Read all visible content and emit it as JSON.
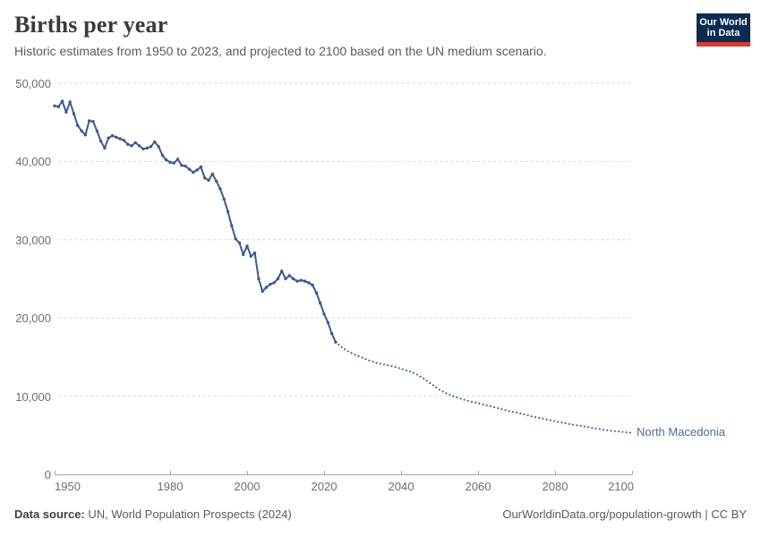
{
  "header": {
    "title": "Births per year",
    "subtitle": "Historic estimates from 1950 to 2023, and projected to 2100 based on the UN medium scenario.",
    "logo": {
      "line1": "Our World",
      "line2": "in Data"
    }
  },
  "theme": {
    "line_color": "#3d5a8f",
    "entity_color": "#4c6b9e",
    "grid_color": "#dadada",
    "axis_color": "#a6a6a6",
    "tick_text_color": "#6e6e6e",
    "title_color": "#3a3a3a",
    "subtitle_color": "#5b5b5b",
    "logo_bg": "#0a2b52",
    "logo_red": "#d73a32"
  },
  "chart_data": {
    "type": "line",
    "title": "Births per year",
    "entity": "North Macedonia",
    "xlim": [
      1950,
      2100
    ],
    "ylim": [
      0,
      50000
    ],
    "grid": true,
    "x_ticks": [
      1950,
      1980,
      2000,
      2020,
      2040,
      2060,
      2080,
      2100
    ],
    "y_ticks": [
      0,
      10000,
      20000,
      30000,
      40000,
      50000
    ],
    "y_tick_labels": [
      "0",
      "10,000",
      "20,000",
      "30,000",
      "40,000",
      "50,000"
    ],
    "series": [
      {
        "name": "historic (1950-2023)",
        "style": "solid",
        "points": [
          [
            1950,
            47100
          ],
          [
            1951,
            47000
          ],
          [
            1952,
            47700
          ],
          [
            1953,
            46300
          ],
          [
            1954,
            47600
          ],
          [
            1955,
            46100
          ],
          [
            1956,
            44600
          ],
          [
            1957,
            43900
          ],
          [
            1958,
            43400
          ],
          [
            1959,
            45200
          ],
          [
            1960,
            45100
          ],
          [
            1961,
            43900
          ],
          [
            1962,
            42600
          ],
          [
            1963,
            41700
          ],
          [
            1964,
            43000
          ],
          [
            1965,
            43300
          ],
          [
            1966,
            43100
          ],
          [
            1967,
            42900
          ],
          [
            1968,
            42700
          ],
          [
            1969,
            42200
          ],
          [
            1970,
            42000
          ],
          [
            1971,
            42400
          ],
          [
            1972,
            42000
          ],
          [
            1973,
            41600
          ],
          [
            1974,
            41700
          ],
          [
            1975,
            41900
          ],
          [
            1976,
            42500
          ],
          [
            1977,
            41900
          ],
          [
            1978,
            40800
          ],
          [
            1979,
            40200
          ],
          [
            1980,
            39900
          ],
          [
            1981,
            39800
          ],
          [
            1982,
            40300
          ],
          [
            1983,
            39500
          ],
          [
            1984,
            39400
          ],
          [
            1985,
            39000
          ],
          [
            1986,
            38600
          ],
          [
            1987,
            38900
          ],
          [
            1988,
            39300
          ],
          [
            1989,
            37900
          ],
          [
            1990,
            37600
          ],
          [
            1991,
            38400
          ],
          [
            1992,
            37500
          ],
          [
            1993,
            36500
          ],
          [
            1994,
            35200
          ],
          [
            1995,
            33600
          ],
          [
            1996,
            31800
          ],
          [
            1997,
            30100
          ],
          [
            1998,
            29600
          ],
          [
            1999,
            28100
          ],
          [
            2000,
            29200
          ],
          [
            2001,
            27900
          ],
          [
            2002,
            28300
          ],
          [
            2003,
            25000
          ],
          [
            2004,
            23400
          ],
          [
            2005,
            23900
          ],
          [
            2006,
            24300
          ],
          [
            2007,
            24500
          ],
          [
            2008,
            25000
          ],
          [
            2009,
            26000
          ],
          [
            2010,
            25000
          ],
          [
            2011,
            25400
          ],
          [
            2012,
            25000
          ],
          [
            2013,
            24700
          ],
          [
            2014,
            24800
          ],
          [
            2015,
            24700
          ],
          [
            2016,
            24500
          ],
          [
            2017,
            24200
          ],
          [
            2018,
            23200
          ],
          [
            2019,
            21900
          ],
          [
            2020,
            20500
          ],
          [
            2021,
            19400
          ],
          [
            2022,
            18000
          ],
          [
            2023,
            16900
          ]
        ]
      },
      {
        "name": "UN medium projection (2023-2100)",
        "style": "dotted",
        "points": [
          [
            2023,
            16900
          ],
          [
            2024,
            16500
          ],
          [
            2025,
            16100
          ],
          [
            2026,
            15800
          ],
          [
            2028,
            15300
          ],
          [
            2030,
            14900
          ],
          [
            2032,
            14500
          ],
          [
            2034,
            14200
          ],
          [
            2036,
            14000
          ],
          [
            2038,
            13800
          ],
          [
            2040,
            13500
          ],
          [
            2042,
            13200
          ],
          [
            2044,
            12800
          ],
          [
            2046,
            12200
          ],
          [
            2048,
            11500
          ],
          [
            2050,
            10800
          ],
          [
            2052,
            10300
          ],
          [
            2054,
            9900
          ],
          [
            2056,
            9600
          ],
          [
            2058,
            9300
          ],
          [
            2060,
            9100
          ],
          [
            2062,
            8850
          ],
          [
            2064,
            8600
          ],
          [
            2066,
            8350
          ],
          [
            2068,
            8100
          ],
          [
            2070,
            7900
          ],
          [
            2072,
            7650
          ],
          [
            2074,
            7400
          ],
          [
            2076,
            7200
          ],
          [
            2078,
            7000
          ],
          [
            2080,
            6800
          ],
          [
            2082,
            6600
          ],
          [
            2084,
            6400
          ],
          [
            2086,
            6250
          ],
          [
            2088,
            6100
          ],
          [
            2090,
            5900
          ],
          [
            2092,
            5750
          ],
          [
            2094,
            5600
          ],
          [
            2096,
            5500
          ],
          [
            2098,
            5400
          ],
          [
            2100,
            5300
          ]
        ]
      }
    ]
  },
  "footer": {
    "source_label": "Data source:",
    "source_text": " UN, World Population Prospects (2024)",
    "credit": "OurWorldinData.org/population-growth | CC BY"
  }
}
